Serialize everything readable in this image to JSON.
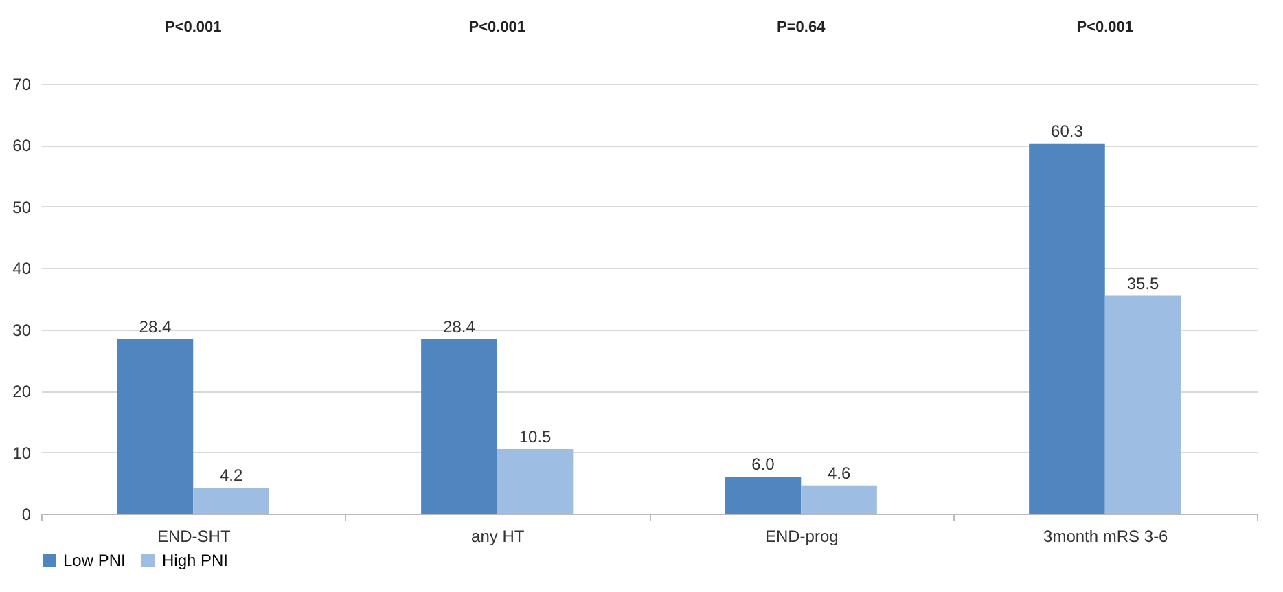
{
  "chart_data": {
    "type": "bar",
    "categories": [
      "END-SHT",
      "any HT",
      "END-prog",
      "3month mRS 3-6"
    ],
    "series": [
      {
        "name": "Low PNI",
        "color": "#4f86c0",
        "values": [
          28.4,
          28.4,
          6.0,
          60.3
        ],
        "value_labels": [
          "28.4",
          "28.4",
          "6.0",
          "60.3"
        ]
      },
      {
        "name": "High PNI",
        "color": "#9dbde3",
        "values": [
          4.2,
          10.5,
          4.6,
          35.5
        ],
        "value_labels": [
          "4.2",
          "10.5",
          "4.6",
          "35.5"
        ]
      }
    ],
    "ylim": [
      0,
      70
    ],
    "yticks": [
      0,
      10,
      20,
      30,
      40,
      50,
      60,
      70
    ],
    "grid": "y",
    "legend": "bottom",
    "annotations": [
      "P<0.001",
      "P<0.001",
      "P=0.64",
      "P<0.001"
    ]
  }
}
